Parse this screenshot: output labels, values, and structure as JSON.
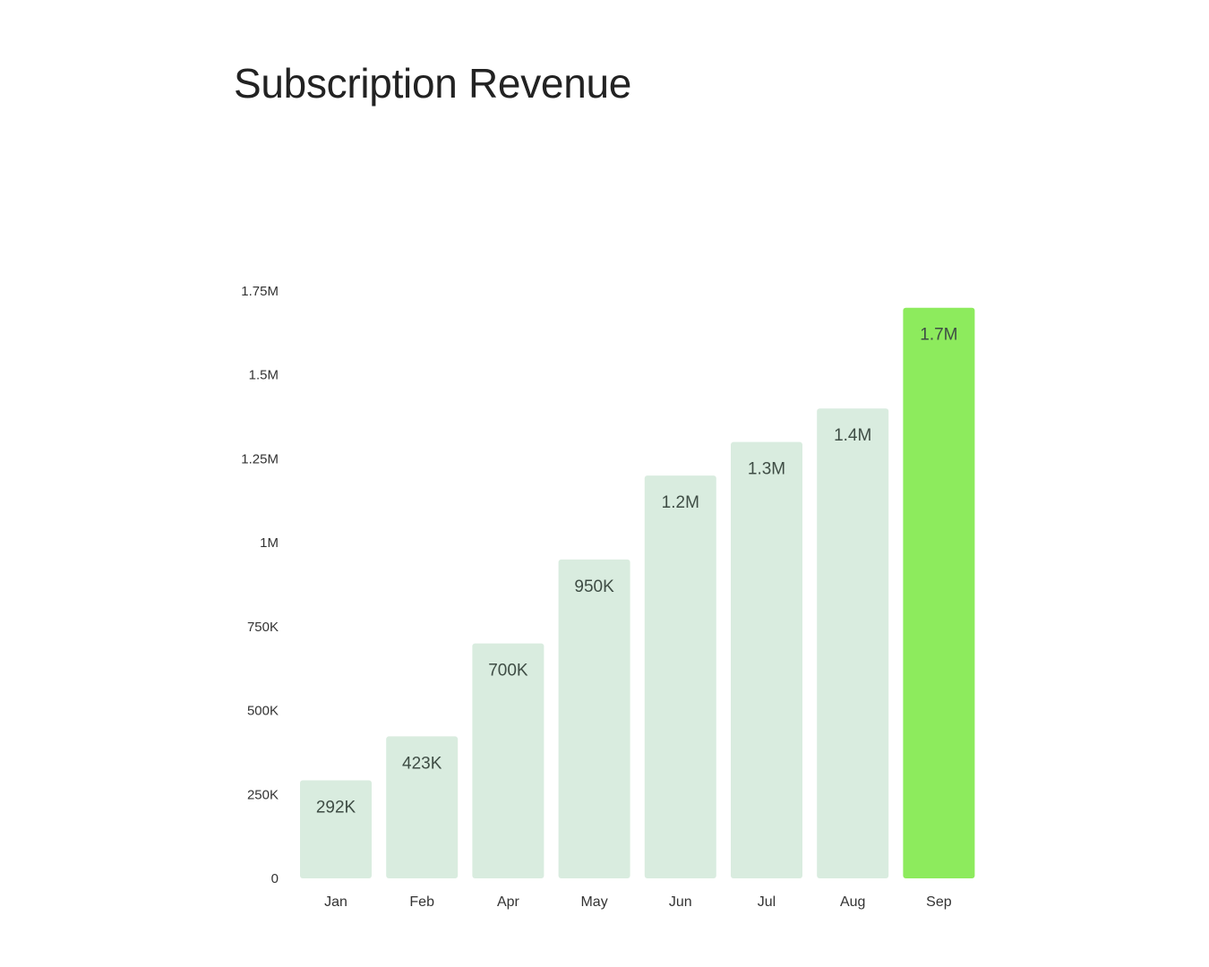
{
  "title": "Subscription Revenue",
  "colors": {
    "bar": "#d9ecdf",
    "highlight_bar": "#8deb5d",
    "label": "#3f4d45",
    "title": "#222222"
  },
  "chart_data": {
    "type": "bar",
    "title": "Subscription Revenue",
    "xlabel": "",
    "ylabel": "",
    "categories": [
      "Jan",
      "Feb",
      "Apr",
      "May",
      "Jun",
      "Jul",
      "Aug",
      "Sep"
    ],
    "values": [
      292000,
      423000,
      700000,
      950000,
      1200000,
      1300000,
      1400000,
      1700000
    ],
    "labels": [
      "292K",
      "423K",
      "700K",
      "950K",
      "1.2M",
      "1.3M",
      "1.4M",
      "1.7M"
    ],
    "highlight_index": 7,
    "ylim": [
      0,
      1750000
    ],
    "yticks": [
      0,
      250000,
      500000,
      750000,
      1000000,
      1250000,
      1500000,
      1750000
    ],
    "ytick_labels": [
      "0",
      "250K",
      "500K",
      "750K",
      "1M",
      "1.25M",
      "1.5M",
      "1.75M"
    ],
    "grid": false,
    "legend": "none"
  }
}
